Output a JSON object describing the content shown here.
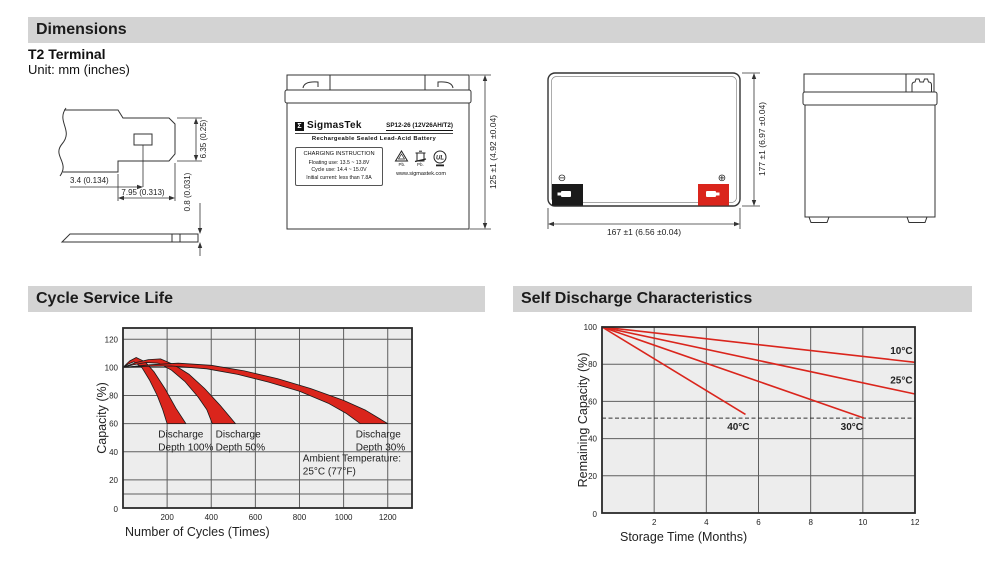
{
  "colors": {
    "header_bg": "#d3d3d3",
    "red": "#da251c",
    "plot_bg": "#ededed",
    "grid": "#5f5f5f",
    "frame": "#2a2a2a"
  },
  "sections": {
    "dimensions": "Dimensions",
    "cycle": "Cycle Service Life",
    "self_discharge": "Self Discharge Characteristics"
  },
  "dimensions_block": {
    "subtitle": "T2 Terminal",
    "unit_note": "Unit: mm (inches)",
    "terminal_detail": {
      "height": "6.35 (0.25)",
      "offset": "3.4 (0.134)",
      "length": "7.95 (0.313)",
      "thickness": "0.8 (0.031)"
    },
    "front_view": {
      "height_dim": "125 ±1 (4.92 ±0.04)"
    },
    "top_view": {
      "width_dim": "167 ±1 (6.56 ±0.04)",
      "depth_dim": "177 ±1 (6.97 ±0.04)",
      "minus": "⊖",
      "plus": "⊕"
    },
    "label": {
      "logo_glyph": "Σ",
      "brand": "SigmasTek",
      "model": "SP12-26 (12V26AH/T2)",
      "subtitle": "Rechargeable Sealed Lead-Acid Battery",
      "charging_title": "CHARGING INSTRUCTION",
      "charging_lines": [
        "Floating use: 13.5 ~ 13.8V",
        "Cycle use: 14.4 ~ 15.0V",
        "Initial current: less than 7.8A"
      ],
      "pb_recycle_text": "Pb.",
      "pb_bin_text": "Pb.",
      "ul_text": "UL",
      "website": "www.sigmastek.com"
    }
  },
  "chart_data": [
    {
      "id": "cycle-service-life",
      "type": "area",
      "title": "Cycle Service Life",
      "xlabel": "Number of Cycles (Times)",
      "ylabel": "Capacity (%)",
      "xlim": [
        0,
        1310
      ],
      "ylim": [
        0,
        128
      ],
      "xticks": [
        200,
        400,
        600,
        800,
        1000,
        1200
      ],
      "yticks": [
        20,
        40,
        60,
        80,
        100,
        120
      ],
      "extra_gridlines_y": [
        10
      ],
      "origin_label": "0",
      "grid": true,
      "bands": [
        {
          "name": "Discharge Depth 100%",
          "upper": [
            [
              0,
              100
            ],
            [
              30,
              104.5
            ],
            [
              60,
              107
            ],
            [
              100,
              104
            ],
            [
              140,
              97
            ],
            [
              190,
              85
            ],
            [
              240,
              71
            ],
            [
              285,
              60
            ]
          ],
          "lower": [
            [
              0,
              100
            ],
            [
              25,
              102.5
            ],
            [
              50,
              104
            ],
            [
              85,
              100
            ],
            [
              120,
              91
            ],
            [
              155,
              80
            ],
            [
              180,
              70
            ],
            [
              200,
              60
            ]
          ]
        },
        {
          "name": "Discharge Depth 50%",
          "upper": [
            [
              0,
              100
            ],
            [
              60,
              103.5
            ],
            [
              115,
              105.5
            ],
            [
              170,
              106
            ],
            [
              230,
              102
            ],
            [
              300,
              95
            ],
            [
              370,
              85
            ],
            [
              440,
              73
            ],
            [
              510,
              60
            ]
          ],
          "lower": [
            [
              0,
              100
            ],
            [
              50,
              102
            ],
            [
              105,
              103.5
            ],
            [
              160,
              103
            ],
            [
              220,
              98
            ],
            [
              280,
              90
            ],
            [
              340,
              79
            ],
            [
              380,
              70
            ],
            [
              405,
              60
            ]
          ]
        },
        {
          "name": "Discharge Depth 30%",
          "upper": [
            [
              0,
              100
            ],
            [
              120,
              101.8
            ],
            [
              250,
              103
            ],
            [
              400,
              101.5
            ],
            [
              550,
              97.5
            ],
            [
              700,
              92
            ],
            [
              850,
              85
            ],
            [
              1000,
              76.5
            ],
            [
              1100,
              69.5
            ],
            [
              1200,
              60
            ]
          ],
          "lower": [
            [
              0,
              100
            ],
            [
              100,
              100.8
            ],
            [
              220,
              101
            ],
            [
              380,
              99
            ],
            [
              520,
              95
            ],
            [
              660,
              89.5
            ],
            [
              800,
              83
            ],
            [
              930,
              74.5
            ],
            [
              1010,
              67.5
            ],
            [
              1075,
              60
            ]
          ]
        }
      ],
      "annotations": [
        {
          "lines": [
            "Discharge",
            "Depth 100%"
          ],
          "x": 160,
          "y": 50
        },
        {
          "lines": [
            "Discharge",
            "Depth 50%"
          ],
          "x": 420,
          "y": 50
        },
        {
          "lines": [
            "Discharge",
            "Depth 30%"
          ],
          "x": 1055,
          "y": 50
        },
        {
          "lines": [
            "Ambient Temperature:",
            "25°C (77°F)"
          ],
          "x": 815,
          "y": 33
        }
      ]
    },
    {
      "id": "self-discharge",
      "type": "line",
      "title": "Self Discharge Characteristics",
      "xlabel": "Storage Time (Months)",
      "ylabel": "Remaining Capacity (%)",
      "xlim": [
        0,
        12
      ],
      "ylim": [
        0,
        100
      ],
      "xticks": [
        2,
        4,
        6,
        8,
        10,
        12
      ],
      "yticks": [
        20,
        40,
        60,
        80,
        100
      ],
      "origin_label": "0",
      "grid": true,
      "dashed_line_y": 51,
      "series": [
        {
          "name": "10°C",
          "points": [
            [
              0,
              100
            ],
            [
              12,
              81
            ]
          ],
          "label_pos": [
            11.05,
            85.5
          ]
        },
        {
          "name": "25°C",
          "points": [
            [
              0,
              100
            ],
            [
              12,
              64
            ]
          ],
          "label_pos": [
            11.05,
            69.5
          ]
        },
        {
          "name": "30°C",
          "points": [
            [
              0,
              100
            ],
            [
              10.05,
              51
            ]
          ],
          "label_pos": [
            9.15,
            44.5
          ]
        },
        {
          "name": "40°C",
          "points": [
            [
              0,
              100
            ],
            [
              5.5,
              53
            ]
          ],
          "label_pos": [
            4.8,
            44.5
          ]
        }
      ]
    }
  ]
}
